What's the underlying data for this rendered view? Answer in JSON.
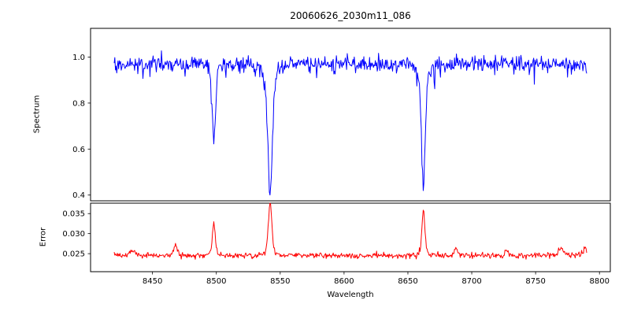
{
  "title": "20060626_2030m11_086",
  "xlabel": "Wavelength",
  "xticks": [
    "8450",
    "8500",
    "8550",
    "8600",
    "8650",
    "8700",
    "8750",
    "8800"
  ],
  "chart_data": [
    {
      "type": "line",
      "name": "spectrum",
      "color": "#0000ff",
      "ylabel": "Spectrum",
      "legend": "none",
      "grid": false,
      "xlim": [
        8401.5,
        8808.5
      ],
      "ylim": [
        0.375,
        1.125
      ],
      "yticks": [
        "0.4",
        "0.6",
        "0.8",
        "1.0"
      ],
      "x_range": [
        8420,
        8790
      ],
      "sample_step": 0.5,
      "continuum": 0.97,
      "noise": {
        "seed": 20060626,
        "sigma": 0.017,
        "dip_prob": 0.05,
        "dip_max": 0.07
      },
      "absorption_lines": [
        {
          "center": 8498.0,
          "depth": 0.37,
          "width": 1.3,
          "min_value": 0.6
        },
        {
          "center": 8542.1,
          "depth": 0.57,
          "width": 2.0,
          "min_value": 0.4
        },
        {
          "center": 8662.1,
          "depth": 0.54,
          "width": 1.6,
          "min_value": 0.43
        }
      ]
    },
    {
      "type": "line",
      "name": "error",
      "color": "#ff0000",
      "ylabel": "Error",
      "legend": "none",
      "grid": false,
      "xlim": [
        8401.5,
        8808.5
      ],
      "ylim": [
        0.0205,
        0.0376
      ],
      "yticks": [
        "0.025",
        "0.030",
        "0.035"
      ],
      "baseline": 0.0245,
      "noise": {
        "seed": 86,
        "sigma": 0.00035
      },
      "peaks": [
        {
          "center": 8434.0,
          "height": 0.0015,
          "width": 2.0
        },
        {
          "center": 8468.0,
          "height": 0.0028,
          "width": 1.5
        },
        {
          "center": 8498.0,
          "height": 0.008,
          "width": 1.2,
          "max_value": 0.0325
        },
        {
          "center": 8542.1,
          "height": 0.0131,
          "width": 1.5,
          "max_value": 0.0376
        },
        {
          "center": 8662.1,
          "height": 0.0115,
          "width": 1.3,
          "max_value": 0.036
        },
        {
          "center": 8688.0,
          "height": 0.0018,
          "width": 1.5
        },
        {
          "center": 8727.0,
          "height": 0.0013,
          "width": 1.5
        },
        {
          "center": 8770.0,
          "height": 0.002,
          "width": 2.0
        },
        {
          "center": 8789.0,
          "height": 0.002,
          "width": 1.2
        }
      ]
    }
  ]
}
